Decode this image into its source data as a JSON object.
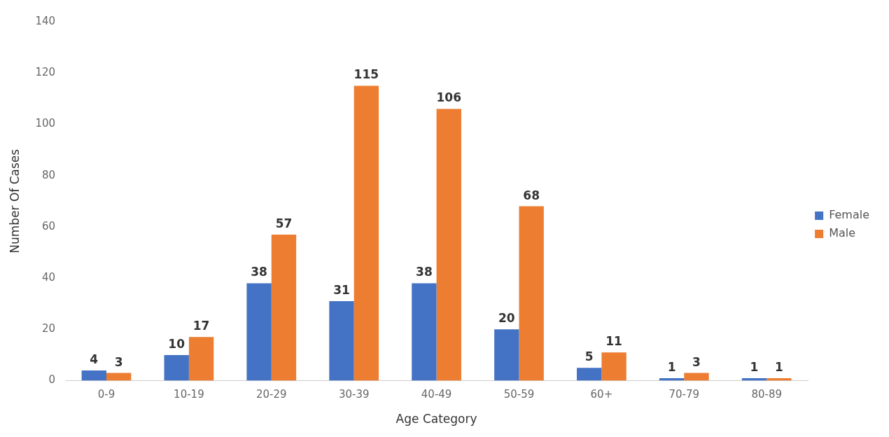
{
  "chart_data": {
    "type": "bar",
    "xlabel": "Age Category",
    "ylabel": "Number Of Cases",
    "categories": [
      "0-9",
      "10-19",
      "20-29",
      "30-39",
      "40-49",
      "50-59",
      "60+",
      "70-79",
      "80-89"
    ],
    "series": [
      {
        "name": "Female",
        "color": "#4472c4",
        "values": [
          4,
          10,
          38,
          31,
          38,
          20,
          5,
          1,
          1
        ]
      },
      {
        "name": "Male",
        "color": "#ed7d31",
        "values": [
          3,
          17,
          57,
          115,
          106,
          68,
          11,
          3,
          1
        ]
      }
    ],
    "ylim": [
      0,
      140
    ],
    "yticks": [
      0,
      20,
      40,
      60,
      80,
      100,
      120,
      140
    ],
    "grid": false,
    "legend": "right",
    "data_labels": true
  }
}
